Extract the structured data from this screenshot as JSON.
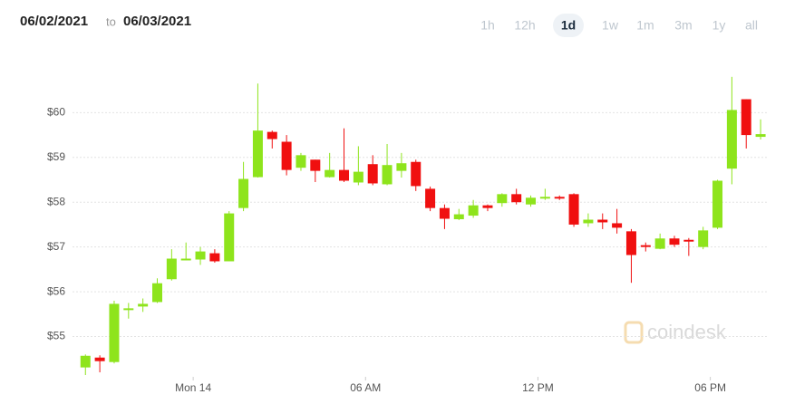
{
  "header": {
    "from": "06/02/2021",
    "separator": "to",
    "to": "06/03/2021"
  },
  "ranges": {
    "items": [
      "1h",
      "12h",
      "1d",
      "1w",
      "1m",
      "3m",
      "1y",
      "all"
    ],
    "selected_index": 2
  },
  "watermark": "coindesk",
  "chart_data": {
    "type": "candlestick",
    "up_color": "#8ee41c",
    "down_color": "#f01010",
    "grid": true,
    "x": [
      -3.75,
      -3.25,
      -2.75,
      -2.25,
      -1.75,
      -1.25,
      -0.75,
      -0.25,
      0.25,
      0.75,
      1.25,
      1.75,
      2.25,
      2.75,
      3.25,
      3.75,
      4.25,
      4.75,
      5.25,
      5.75,
      6.25,
      6.75,
      7.25,
      7.75,
      8.25,
      8.75,
      9.25,
      9.75,
      10.25,
      10.75,
      11.25,
      11.75,
      12.25,
      12.75,
      13.25,
      13.75,
      14.25,
      14.75,
      15.25,
      15.75,
      16.25,
      16.75,
      17.25,
      17.75,
      18.25,
      18.75,
      19.25,
      19.75
    ],
    "open": [
      54.31,
      54.53,
      54.43,
      55.59,
      55.67,
      55.77,
      56.28,
      56.7,
      56.72,
      56.86,
      56.68,
      57.87,
      58.56,
      59.57,
      59.35,
      58.77,
      58.95,
      58.56,
      58.72,
      58.44,
      58.85,
      58.4,
      58.7,
      58.9,
      58.3,
      57.87,
      57.62,
      57.7,
      57.93,
      57.98,
      58.18,
      57.95,
      58.08,
      58.12,
      58.18,
      57.53,
      57.61,
      57.53,
      57.35,
      57.04,
      56.96,
      57.19,
      57.16,
      57.0,
      57.43,
      58.75,
      60.3,
      59.46
    ],
    "high": [
      54.6,
      54.58,
      55.8,
      55.75,
      55.85,
      56.3,
      56.95,
      57.1,
      57.0,
      56.95,
      57.8,
      58.9,
      60.65,
      59.6,
      59.5,
      59.1,
      58.95,
      59.1,
      59.65,
      59.25,
      59.05,
      59.3,
      59.1,
      58.95,
      58.35,
      57.95,
      57.85,
      58.05,
      57.95,
      58.2,
      58.3,
      58.15,
      58.3,
      58.15,
      58.2,
      57.75,
      57.75,
      57.85,
      57.4,
      57.1,
      57.3,
      57.25,
      57.2,
      57.45,
      58.5,
      60.8,
      60.3,
      59.85
    ],
    "low": [
      54.14,
      54.2,
      54.4,
      55.4,
      55.55,
      55.75,
      56.25,
      56.7,
      56.6,
      56.65,
      56.68,
      57.8,
      58.55,
      59.2,
      58.6,
      58.7,
      58.45,
      58.55,
      58.45,
      58.38,
      58.38,
      58.38,
      58.55,
      58.25,
      57.8,
      57.4,
      57.6,
      57.65,
      57.8,
      57.9,
      57.95,
      57.9,
      58.05,
      58.05,
      57.45,
      57.45,
      57.4,
      57.3,
      56.2,
      56.9,
      56.95,
      57.0,
      56.8,
      56.95,
      57.4,
      58.4,
      59.2,
      59.4
    ],
    "close": [
      54.57,
      54.45,
      55.73,
      55.63,
      55.73,
      56.19,
      56.74,
      56.74,
      56.9,
      56.68,
      57.75,
      58.52,
      59.6,
      59.41,
      58.72,
      59.05,
      58.7,
      58.72,
      58.48,
      58.68,
      58.42,
      58.83,
      58.87,
      58.36,
      57.87,
      57.63,
      57.73,
      57.93,
      57.87,
      58.18,
      58.0,
      58.1,
      58.12,
      58.08,
      57.5,
      57.61,
      57.55,
      57.43,
      56.82,
      57.0,
      57.19,
      57.05,
      57.12,
      57.37,
      58.48,
      60.06,
      59.5,
      59.52
    ],
    "xlim": [
      -4.2,
      20
    ],
    "xticks": [
      {
        "value": 0,
        "label": "Mon 14"
      },
      {
        "value": 6,
        "label": "06 AM"
      },
      {
        "value": 12,
        "label": "12 PM"
      },
      {
        "value": 18,
        "label": "06 PM"
      }
    ],
    "ylim": [
      54.1,
      61.1
    ],
    "yticks": [
      {
        "value": 55,
        "label": "$55"
      },
      {
        "value": 56,
        "label": "$56"
      },
      {
        "value": 57,
        "label": "$57"
      },
      {
        "value": 58,
        "label": "$58"
      },
      {
        "value": 59,
        "label": "$59"
      },
      {
        "value": 60,
        "label": "$60"
      }
    ]
  }
}
